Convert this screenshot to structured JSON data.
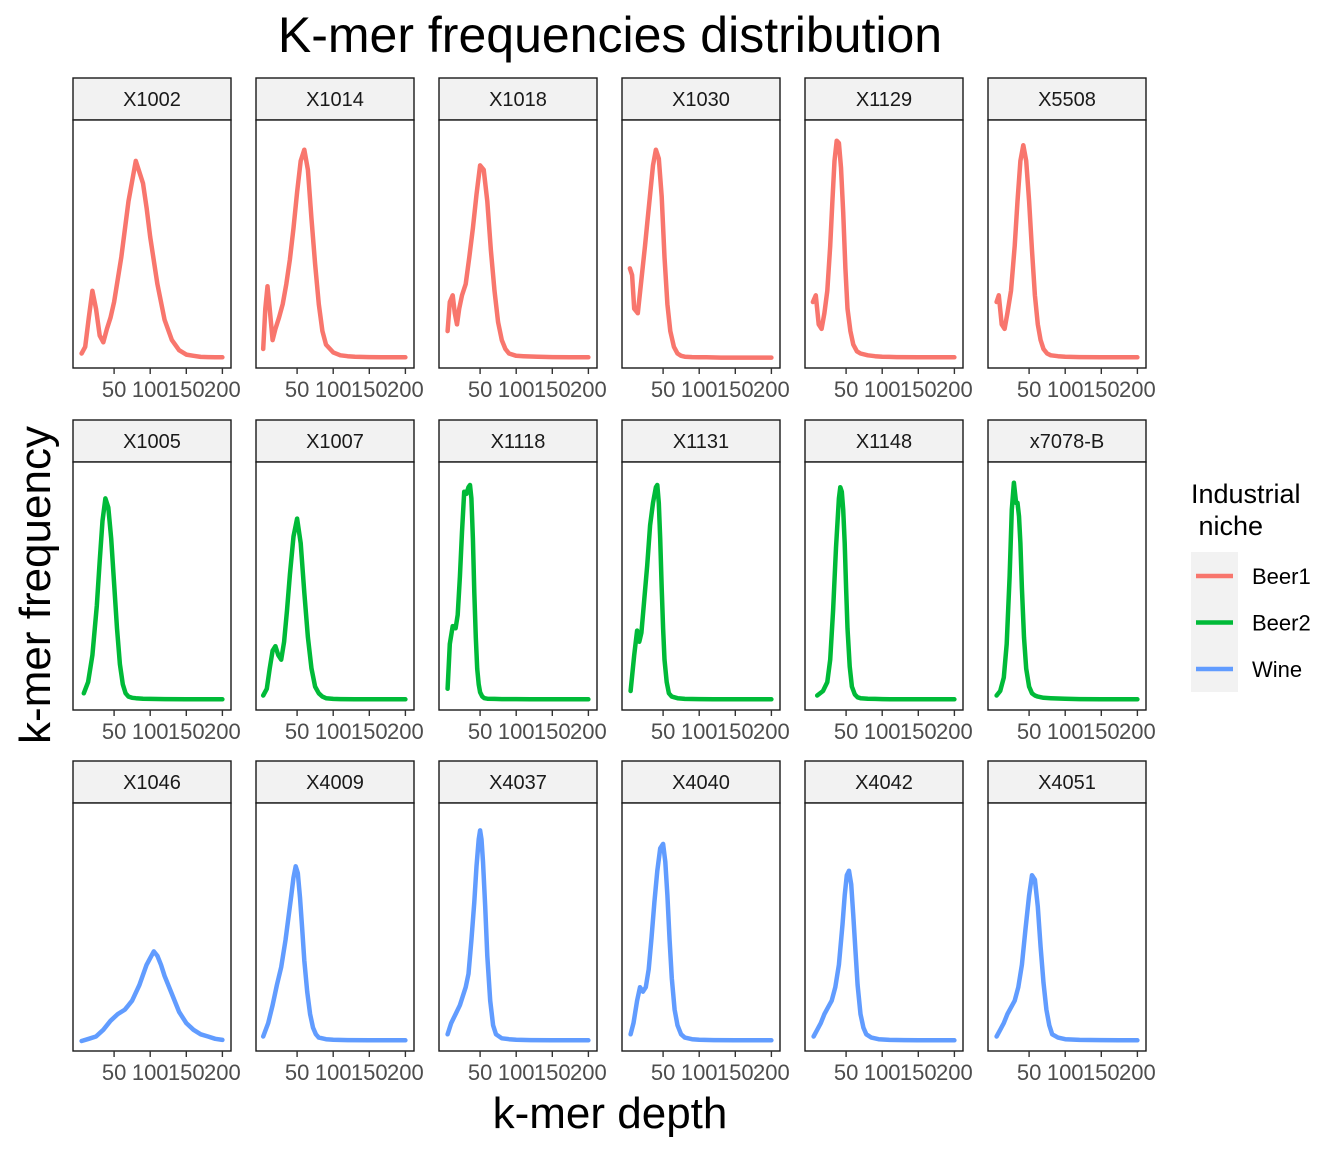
{
  "chart_data": {
    "type": "line",
    "title": "K-mer frequencies distribution",
    "xlabel": "k-mer depth",
    "ylabel": "k-mer frequency",
    "xlim": [
      0,
      205
    ],
    "x_ticks": [
      50,
      100,
      150,
      200
    ],
    "x_tick_labels": [
      "50",
      "100",
      "150",
      "200"
    ],
    "y_ticks_shown": false,
    "grid": false,
    "facet_layout": {
      "rows": 3,
      "cols": 6,
      "free_y": true
    },
    "legend": {
      "title": "Industrial\n niche",
      "position": "right",
      "entries": [
        {
          "name": "Beer1",
          "color": "#F8766D"
        },
        {
          "name": "Beer2",
          "color": "#00BA38"
        },
        {
          "name": "Wine",
          "color": "#619CFF"
        }
      ]
    },
    "panels": [
      {
        "name": "X1002",
        "niche": "Beer1",
        "x": [
          5,
          10,
          15,
          20,
          25,
          30,
          35,
          40,
          45,
          50,
          55,
          60,
          70,
          80,
          90,
          95,
          100,
          110,
          120,
          130,
          140,
          150,
          160,
          170,
          180,
          190,
          200
        ],
        "y": [
          0.02,
          0.05,
          0.18,
          0.3,
          0.22,
          0.1,
          0.07,
          0.13,
          0.18,
          0.25,
          0.35,
          0.45,
          0.7,
          0.88,
          0.78,
          0.67,
          0.54,
          0.33,
          0.17,
          0.08,
          0.035,
          0.015,
          0.01,
          0.005,
          0.004,
          0.003,
          0.003
        ]
      },
      {
        "name": "X1014",
        "niche": "Beer1",
        "x": [
          3,
          6,
          9,
          12,
          16,
          20,
          25,
          30,
          35,
          40,
          45,
          50,
          55,
          60,
          65,
          70,
          75,
          80,
          85,
          90,
          100,
          110,
          120,
          130,
          150,
          175,
          200
        ],
        "y": [
          0.04,
          0.22,
          0.32,
          0.22,
          0.08,
          0.13,
          0.18,
          0.24,
          0.33,
          0.44,
          0.58,
          0.74,
          0.88,
          0.93,
          0.84,
          0.62,
          0.42,
          0.24,
          0.12,
          0.06,
          0.025,
          0.012,
          0.008,
          0.006,
          0.004,
          0.003,
          0.003
        ]
      },
      {
        "name": "X1018",
        "niche": "Beer1",
        "x": [
          5,
          8,
          12,
          15,
          18,
          21,
          25,
          30,
          35,
          40,
          45,
          50,
          55,
          60,
          65,
          70,
          75,
          80,
          85,
          90,
          100,
          110,
          130,
          150,
          175,
          200
        ],
        "y": [
          0.12,
          0.25,
          0.28,
          0.2,
          0.15,
          0.22,
          0.28,
          0.33,
          0.45,
          0.58,
          0.73,
          0.86,
          0.84,
          0.7,
          0.48,
          0.3,
          0.16,
          0.08,
          0.04,
          0.02,
          0.01,
          0.008,
          0.006,
          0.004,
          0.003,
          0.003
        ]
      },
      {
        "name": "X1030",
        "niche": "Beer1",
        "x": [
          4,
          7,
          10,
          15,
          20,
          25,
          28,
          32,
          36,
          40,
          44,
          48,
          52,
          56,
          60,
          65,
          70,
          75,
          80,
          90,
          100,
          110,
          130,
          150,
          175,
          200
        ],
        "y": [
          0.4,
          0.37,
          0.22,
          0.2,
          0.35,
          0.5,
          0.6,
          0.73,
          0.86,
          0.93,
          0.89,
          0.72,
          0.45,
          0.24,
          0.12,
          0.05,
          0.02,
          0.01,
          0.006,
          0.004,
          0.003,
          0.003,
          0.002,
          0.002,
          0.002,
          0.002
        ]
      },
      {
        "name": "X1129",
        "niche": "Beer1",
        "x": [
          4,
          8,
          12,
          16,
          20,
          24,
          28,
          31,
          34,
          37,
          40,
          43,
          46,
          49,
          52,
          56,
          60,
          65,
          70,
          80,
          90,
          100,
          120,
          150,
          175,
          200
        ],
        "y": [
          0.25,
          0.28,
          0.15,
          0.13,
          0.2,
          0.3,
          0.5,
          0.7,
          0.88,
          0.97,
          0.96,
          0.85,
          0.65,
          0.4,
          0.22,
          0.12,
          0.06,
          0.03,
          0.02,
          0.012,
          0.008,
          0.006,
          0.004,
          0.003,
          0.003,
          0.003
        ]
      },
      {
        "name": "X5508",
        "niche": "Beer1",
        "x": [
          5,
          8,
          12,
          16,
          20,
          25,
          30,
          34,
          38,
          42,
          46,
          50,
          54,
          58,
          62,
          66,
          70,
          75,
          80,
          90,
          100,
          120,
          150,
          175,
          200
        ],
        "y": [
          0.25,
          0.28,
          0.15,
          0.13,
          0.2,
          0.3,
          0.5,
          0.7,
          0.88,
          0.95,
          0.88,
          0.7,
          0.48,
          0.28,
          0.15,
          0.08,
          0.04,
          0.02,
          0.012,
          0.008,
          0.006,
          0.004,
          0.003,
          0.003,
          0.003
        ]
      },
      {
        "name": "X1005",
        "niche": "Beer2",
        "x": [
          8,
          14,
          20,
          26,
          30,
          34,
          38,
          42,
          46,
          50,
          54,
          58,
          62,
          66,
          70,
          75,
          80,
          90,
          100,
          120,
          150,
          175,
          200
        ],
        "y": [
          0.03,
          0.08,
          0.2,
          0.42,
          0.62,
          0.8,
          0.9,
          0.86,
          0.72,
          0.52,
          0.32,
          0.16,
          0.07,
          0.03,
          0.015,
          0.01,
          0.008,
          0.006,
          0.005,
          0.004,
          0.003,
          0.003,
          0.003
        ]
      },
      {
        "name": "X1007",
        "niche": "Beer2",
        "x": [
          3,
          8,
          12,
          16,
          20,
          24,
          28,
          32,
          36,
          40,
          45,
          50,
          55,
          60,
          65,
          70,
          75,
          80,
          85,
          90,
          100,
          110,
          130,
          150,
          175,
          200
        ],
        "y": [
          0.02,
          0.05,
          0.14,
          0.22,
          0.24,
          0.2,
          0.18,
          0.26,
          0.4,
          0.56,
          0.73,
          0.81,
          0.7,
          0.48,
          0.28,
          0.14,
          0.06,
          0.03,
          0.015,
          0.008,
          0.005,
          0.004,
          0.003,
          0.003,
          0.003,
          0.003
        ]
      },
      {
        "name": "X1118",
        "niche": "Beer2",
        "x": [
          5,
          8,
          12,
          16,
          19,
          22,
          25,
          28,
          31,
          34,
          36,
          38,
          40,
          42,
          44,
          46,
          48,
          50,
          53,
          56,
          60,
          70,
          80,
          100,
          120,
          150,
          175,
          200
        ],
        "y": [
          0.05,
          0.25,
          0.33,
          0.32,
          0.38,
          0.55,
          0.75,
          0.93,
          0.92,
          0.95,
          0.96,
          0.9,
          0.72,
          0.48,
          0.28,
          0.14,
          0.07,
          0.035,
          0.015,
          0.008,
          0.006,
          0.005,
          0.004,
          0.004,
          0.003,
          0.003,
          0.003,
          0.003
        ]
      },
      {
        "name": "X1131",
        "niche": "Beer2",
        "x": [
          5,
          10,
          14,
          17,
          20,
          24,
          28,
          32,
          36,
          40,
          42,
          44,
          46,
          48,
          50,
          52,
          55,
          58,
          62,
          70,
          80,
          100,
          120,
          150,
          175,
          200
        ],
        "y": [
          0.04,
          0.2,
          0.31,
          0.26,
          0.3,
          0.45,
          0.6,
          0.78,
          0.88,
          0.95,
          0.96,
          0.88,
          0.72,
          0.5,
          0.32,
          0.18,
          0.08,
          0.03,
          0.015,
          0.008,
          0.005,
          0.004,
          0.003,
          0.003,
          0.003,
          0.003
        ]
      },
      {
        "name": "X1148",
        "niche": "Beer2",
        "x": [
          10,
          18,
          24,
          28,
          32,
          36,
          40,
          42,
          44,
          46,
          48,
          50,
          52,
          55,
          58,
          62,
          66,
          70,
          80,
          90,
          100,
          120,
          150,
          175,
          200
        ],
        "y": [
          0.02,
          0.04,
          0.08,
          0.18,
          0.4,
          0.68,
          0.9,
          0.95,
          0.93,
          0.85,
          0.7,
          0.5,
          0.32,
          0.15,
          0.06,
          0.025,
          0.012,
          0.008,
          0.006,
          0.005,
          0.004,
          0.003,
          0.003,
          0.003,
          0.003
        ]
      },
      {
        "name": "x7078-B",
        "niche": "Beer2",
        "x": [
          5,
          10,
          15,
          19,
          23,
          26,
          29,
          32,
          34,
          36,
          38,
          40,
          43,
          46,
          50,
          54,
          58,
          62,
          70,
          80,
          100,
          120,
          150,
          175,
          200
        ],
        "y": [
          0.02,
          0.04,
          0.1,
          0.25,
          0.55,
          0.85,
          0.97,
          0.88,
          0.88,
          0.82,
          0.7,
          0.5,
          0.28,
          0.14,
          0.06,
          0.03,
          0.02,
          0.015,
          0.01,
          0.008,
          0.006,
          0.004,
          0.003,
          0.003,
          0.003
        ]
      },
      {
        "name": "X1046",
        "niche": "Wine",
        "x": [
          5,
          15,
          25,
          35,
          45,
          55,
          65,
          75,
          85,
          95,
          100,
          105,
          110,
          115,
          120,
          130,
          140,
          150,
          160,
          170,
          180,
          190,
          200
        ],
        "y": [
          0.0,
          0.01,
          0.02,
          0.05,
          0.09,
          0.12,
          0.14,
          0.18,
          0.25,
          0.34,
          0.37,
          0.4,
          0.38,
          0.34,
          0.29,
          0.21,
          0.13,
          0.08,
          0.05,
          0.03,
          0.02,
          0.01,
          0.005
        ]
      },
      {
        "name": "X4009",
        "niche": "Wine",
        "x": [
          3,
          10,
          16,
          22,
          28,
          34,
          38,
          42,
          45,
          48,
          51,
          54,
          57,
          60,
          64,
          68,
          72,
          76,
          80,
          90,
          100,
          120,
          150,
          175,
          200
        ],
        "y": [
          0.02,
          0.08,
          0.16,
          0.25,
          0.33,
          0.45,
          0.55,
          0.65,
          0.73,
          0.78,
          0.75,
          0.64,
          0.5,
          0.36,
          0.22,
          0.12,
          0.06,
          0.03,
          0.015,
          0.008,
          0.006,
          0.004,
          0.003,
          0.003,
          0.003
        ]
      },
      {
        "name": "X4037",
        "niche": "Wine",
        "x": [
          5,
          10,
          16,
          22,
          26,
          30,
          34,
          38,
          42,
          45,
          48,
          50,
          52,
          54,
          57,
          60,
          64,
          68,
          72,
          80,
          90,
          100,
          120,
          150,
          175,
          200
        ],
        "y": [
          0.03,
          0.08,
          0.12,
          0.16,
          0.2,
          0.24,
          0.3,
          0.45,
          0.62,
          0.78,
          0.9,
          0.94,
          0.9,
          0.8,
          0.6,
          0.38,
          0.18,
          0.07,
          0.03,
          0.012,
          0.008,
          0.006,
          0.004,
          0.003,
          0.003,
          0.003
        ]
      },
      {
        "name": "X4040",
        "niche": "Wine",
        "x": [
          5,
          9,
          14,
          18,
          22,
          26,
          30,
          34,
          38,
          42,
          46,
          50,
          53,
          56,
          59,
          62,
          66,
          70,
          75,
          80,
          90,
          100,
          120,
          150,
          175,
          200
        ],
        "y": [
          0.03,
          0.08,
          0.18,
          0.24,
          0.22,
          0.24,
          0.32,
          0.46,
          0.62,
          0.76,
          0.86,
          0.88,
          0.8,
          0.65,
          0.45,
          0.28,
          0.14,
          0.07,
          0.03,
          0.015,
          0.008,
          0.006,
          0.004,
          0.003,
          0.003,
          0.003
        ]
      },
      {
        "name": "X4042",
        "niche": "Wine",
        "x": [
          5,
          10,
          15,
          20,
          25,
          30,
          35,
          40,
          45,
          48,
          51,
          54,
          57,
          60,
          63,
          66,
          70,
          74,
          78,
          85,
          95,
          110,
          130,
          150,
          175,
          200
        ],
        "y": [
          0.02,
          0.05,
          0.08,
          0.12,
          0.15,
          0.18,
          0.24,
          0.34,
          0.52,
          0.65,
          0.74,
          0.76,
          0.7,
          0.56,
          0.4,
          0.25,
          0.12,
          0.06,
          0.03,
          0.015,
          0.008,
          0.005,
          0.004,
          0.003,
          0.003,
          0.003
        ]
      },
      {
        "name": "X4051",
        "niche": "Wine",
        "x": [
          5,
          10,
          15,
          20,
          25,
          30,
          35,
          40,
          45,
          50,
          54,
          58,
          62,
          66,
          70,
          74,
          78,
          82,
          90,
          100,
          120,
          150,
          175,
          200
        ],
        "y": [
          0.02,
          0.05,
          0.08,
          0.12,
          0.15,
          0.18,
          0.24,
          0.34,
          0.5,
          0.65,
          0.74,
          0.72,
          0.6,
          0.42,
          0.26,
          0.14,
          0.07,
          0.03,
          0.015,
          0.008,
          0.005,
          0.004,
          0.003,
          0.003
        ]
      }
    ]
  }
}
